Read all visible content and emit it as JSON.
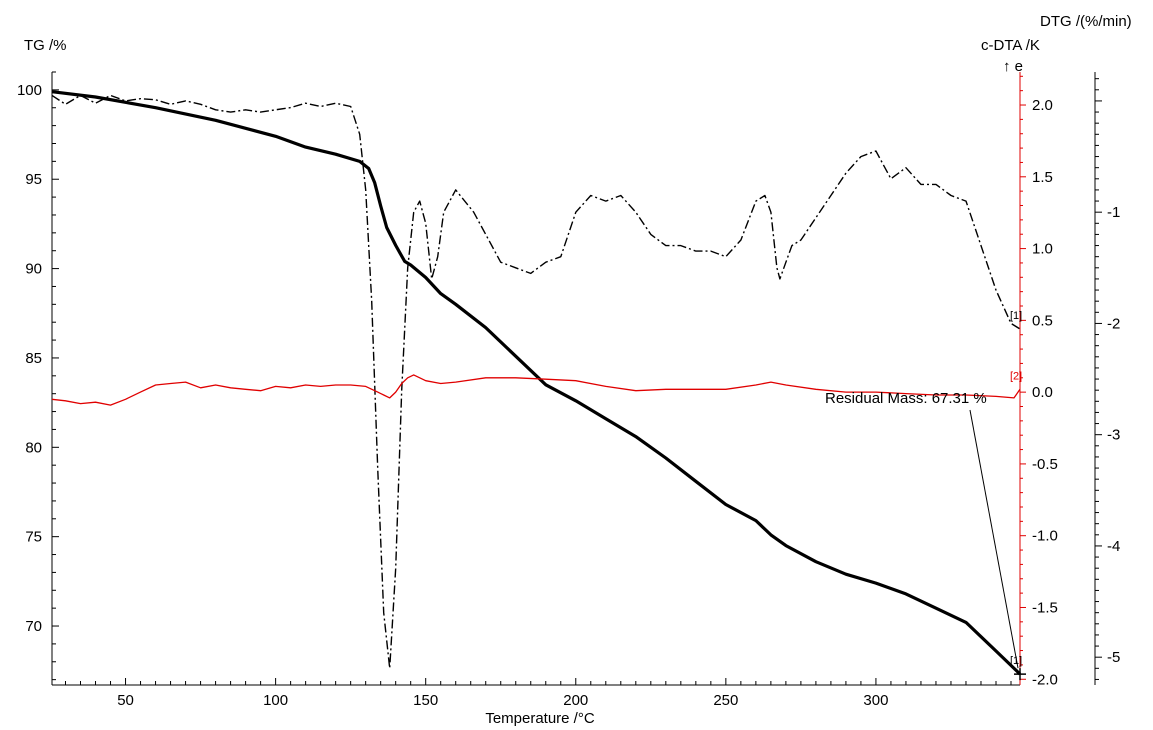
{
  "chart_data": {
    "type": "line",
    "title": "",
    "xlabel": "Temperature /°C",
    "xlim": [
      25.5,
      348
    ],
    "x_ticks": [
      50,
      100,
      150,
      200,
      250,
      300
    ],
    "axes": {
      "tg": {
        "label": "TG /%",
        "ylim": [
          66.7,
          101
        ],
        "ticks": [
          70,
          75,
          80,
          85,
          90,
          95,
          100
        ]
      },
      "dta": {
        "label": "c-DTA /K",
        "arrow_label": "↑ e",
        "ylim": [
          -2.04,
          2.23
        ],
        "ticks": [
          -2.0,
          -1.5,
          -1.0,
          -0.5,
          0.0,
          0.5,
          1.0,
          1.5,
          2.0
        ],
        "tick_labels": [
          "-2.0",
          "-1.5",
          "-1.0",
          "-0.5",
          "0.0",
          "0.5",
          "1.0",
          "1.5",
          "2.0"
        ],
        "color": "#e00000"
      },
      "dtg": {
        "label": "DTG /(%/min)",
        "ylim": [
          -5.25,
          0.26
        ],
        "ticks": [
          -1,
          -2,
          -3,
          -4,
          -5
        ]
      }
    },
    "series": [
      {
        "axis": "tg",
        "style": "solid-thick",
        "color": "#000000",
        "x": [
          25.5,
          40,
          60,
          80,
          100,
          110,
          120,
          128,
          131,
          133,
          135,
          137,
          140,
          143,
          145,
          150,
          155,
          160,
          170,
          180,
          190,
          200,
          210,
          220,
          230,
          240,
          250,
          260,
          265,
          270,
          280,
          290,
          300,
          310,
          320,
          330,
          340,
          348
        ],
        "values": [
          99.9,
          99.6,
          99.0,
          98.3,
          97.4,
          96.8,
          96.4,
          96.0,
          95.6,
          94.8,
          93.5,
          92.3,
          91.3,
          90.4,
          90.2,
          89.5,
          88.6,
          88.0,
          86.7,
          85.1,
          83.5,
          82.6,
          81.6,
          80.6,
          79.4,
          78.1,
          76.8,
          75.9,
          75.1,
          74.5,
          73.6,
          72.9,
          72.4,
          71.8,
          71.0,
          70.2,
          68.6,
          67.31
        ]
      },
      {
        "axis": "dtg",
        "style": "dash-dot",
        "color": "#000000",
        "x": [
          25.5,
          30,
          35,
          40,
          45,
          50,
          55,
          60,
          65,
          70,
          75,
          80,
          85,
          90,
          95,
          100,
          105,
          110,
          115,
          120,
          125,
          128,
          130,
          132,
          134,
          136,
          138,
          140,
          142,
          144,
          146,
          148,
          150,
          152,
          154,
          156,
          158,
          160,
          163,
          166,
          170,
          175,
          180,
          185,
          190,
          195,
          200,
          205,
          210,
          215,
          220,
          225,
          230,
          235,
          240,
          245,
          250,
          255,
          260,
          263,
          265,
          267,
          268,
          270,
          272,
          275,
          280,
          285,
          290,
          295,
          300,
          305,
          310,
          315,
          320,
          325,
          330,
          335,
          340,
          345,
          348
        ],
        "values": [
          0.05,
          -0.03,
          0.05,
          -0.02,
          0.05,
          0.0,
          0.02,
          0.01,
          -0.03,
          0.0,
          -0.03,
          -0.08,
          -0.1,
          -0.08,
          -0.1,
          -0.08,
          -0.06,
          -0.02,
          -0.05,
          -0.02,
          -0.05,
          -0.3,
          -0.8,
          -1.8,
          -3.3,
          -4.6,
          -5.1,
          -4.2,
          -2.6,
          -1.5,
          -1.0,
          -0.9,
          -1.1,
          -1.6,
          -1.4,
          -1.0,
          -0.9,
          -0.8,
          -0.9,
          -1.0,
          -1.2,
          -1.45,
          -1.5,
          -1.55,
          -1.45,
          -1.4,
          -1.0,
          -0.85,
          -0.9,
          -0.85,
          -1.0,
          -1.2,
          -1.3,
          -1.3,
          -1.35,
          -1.35,
          -1.4,
          -1.25,
          -0.9,
          -0.85,
          -1.0,
          -1.5,
          -1.6,
          -1.45,
          -1.3,
          -1.25,
          -1.05,
          -0.85,
          -0.65,
          -0.5,
          -0.45,
          -0.7,
          -0.6,
          -0.75,
          -0.75,
          -0.85,
          -0.9,
          -1.3,
          -1.7,
          -2.0,
          -2.05
        ]
      },
      {
        "axis": "dta",
        "style": "solid-thin",
        "color": "#e00000",
        "x": [
          25.5,
          30,
          35,
          40,
          45,
          50,
          55,
          60,
          65,
          70,
          75,
          80,
          85,
          90,
          95,
          100,
          105,
          110,
          115,
          120,
          125,
          130,
          134,
          136,
          138,
          140,
          142,
          144,
          146,
          150,
          155,
          160,
          170,
          180,
          190,
          200,
          210,
          220,
          230,
          240,
          250,
          260,
          265,
          270,
          280,
          290,
          300,
          310,
          320,
          330,
          340,
          346,
          348
        ],
        "values": [
          -0.05,
          -0.06,
          -0.08,
          -0.07,
          -0.09,
          -0.05,
          0.0,
          0.05,
          0.06,
          0.07,
          0.03,
          0.05,
          0.03,
          0.02,
          0.01,
          0.04,
          0.03,
          0.05,
          0.04,
          0.05,
          0.05,
          0.04,
          0.0,
          -0.02,
          -0.04,
          0.0,
          0.06,
          0.1,
          0.12,
          0.08,
          0.06,
          0.07,
          0.1,
          0.1,
          0.09,
          0.08,
          0.04,
          0.01,
          0.02,
          0.02,
          0.02,
          0.05,
          0.07,
          0.05,
          0.02,
          0.0,
          0.0,
          -0.01,
          -0.02,
          -0.02,
          -0.03,
          -0.04,
          0.02
        ]
      }
    ],
    "annotations": [
      {
        "text": "Residual Mass: 67.31 %",
        "x": 348,
        "y": 67.31,
        "axis": "tg"
      }
    ],
    "curve_markers": [
      {
        "text": "[1]",
        "series": 1,
        "color": "#000000"
      },
      {
        "text": "[2]",
        "series": 2,
        "color": "#e00000"
      },
      {
        "text": "[1]",
        "series": 0,
        "color": "#000000"
      }
    ]
  }
}
